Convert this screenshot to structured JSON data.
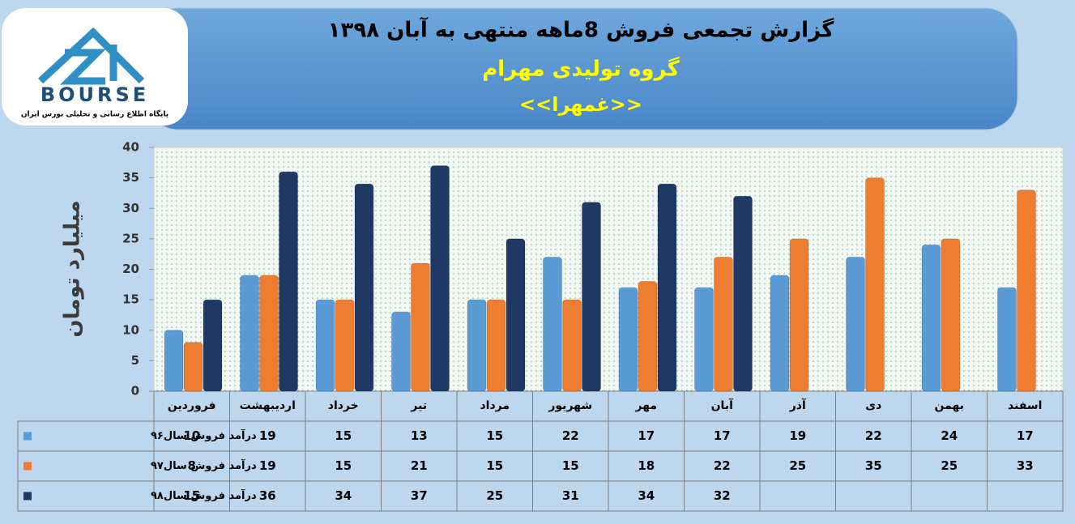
{
  "logo": {
    "text": "BOURSE",
    "subtitle": "پایگاه اطلاع رسانی و تحلیلی بورس ایران"
  },
  "chart_data": {
    "type": "bar",
    "title": "گزارش تجمعی فروش  8ماهه منتهی به آبان ۱۳۹۸",
    "subtitle": "گروه تولیدی مهرام",
    "symbol": "<<غمهرا>>",
    "y_label": "میلیارد تومان",
    "categories": [
      "فروردین",
      "اردیبهشت",
      "خرداد",
      "تیر",
      "مرداد",
      "شهریور",
      "مهر",
      "آبان",
      "آذر",
      "دی",
      "بهمن",
      "اسفند"
    ],
    "series": [
      {
        "name": "درآمد فروش سال۹۶",
        "color": "#5b9bd5",
        "values": [
          10,
          19,
          15,
          13,
          15,
          22,
          17,
          17,
          19,
          22,
          24,
          17
        ]
      },
      {
        "name": "درآمد فروش سال۹۷",
        "color": "#ed7d31",
        "values": [
          8,
          19,
          15,
          21,
          15,
          15,
          18,
          22,
          25,
          35,
          25,
          33
        ]
      },
      {
        "name": "درآمد فروش سال۹۸",
        "color": "#1f3864",
        "values": [
          15,
          36,
          34,
          37,
          25,
          31,
          34,
          32,
          null,
          null,
          null,
          null
        ]
      }
    ],
    "ylim": [
      0,
      40
    ],
    "yticks": [
      0,
      5,
      10,
      15,
      20,
      25,
      30,
      35,
      40
    ],
    "grid": false
  }
}
